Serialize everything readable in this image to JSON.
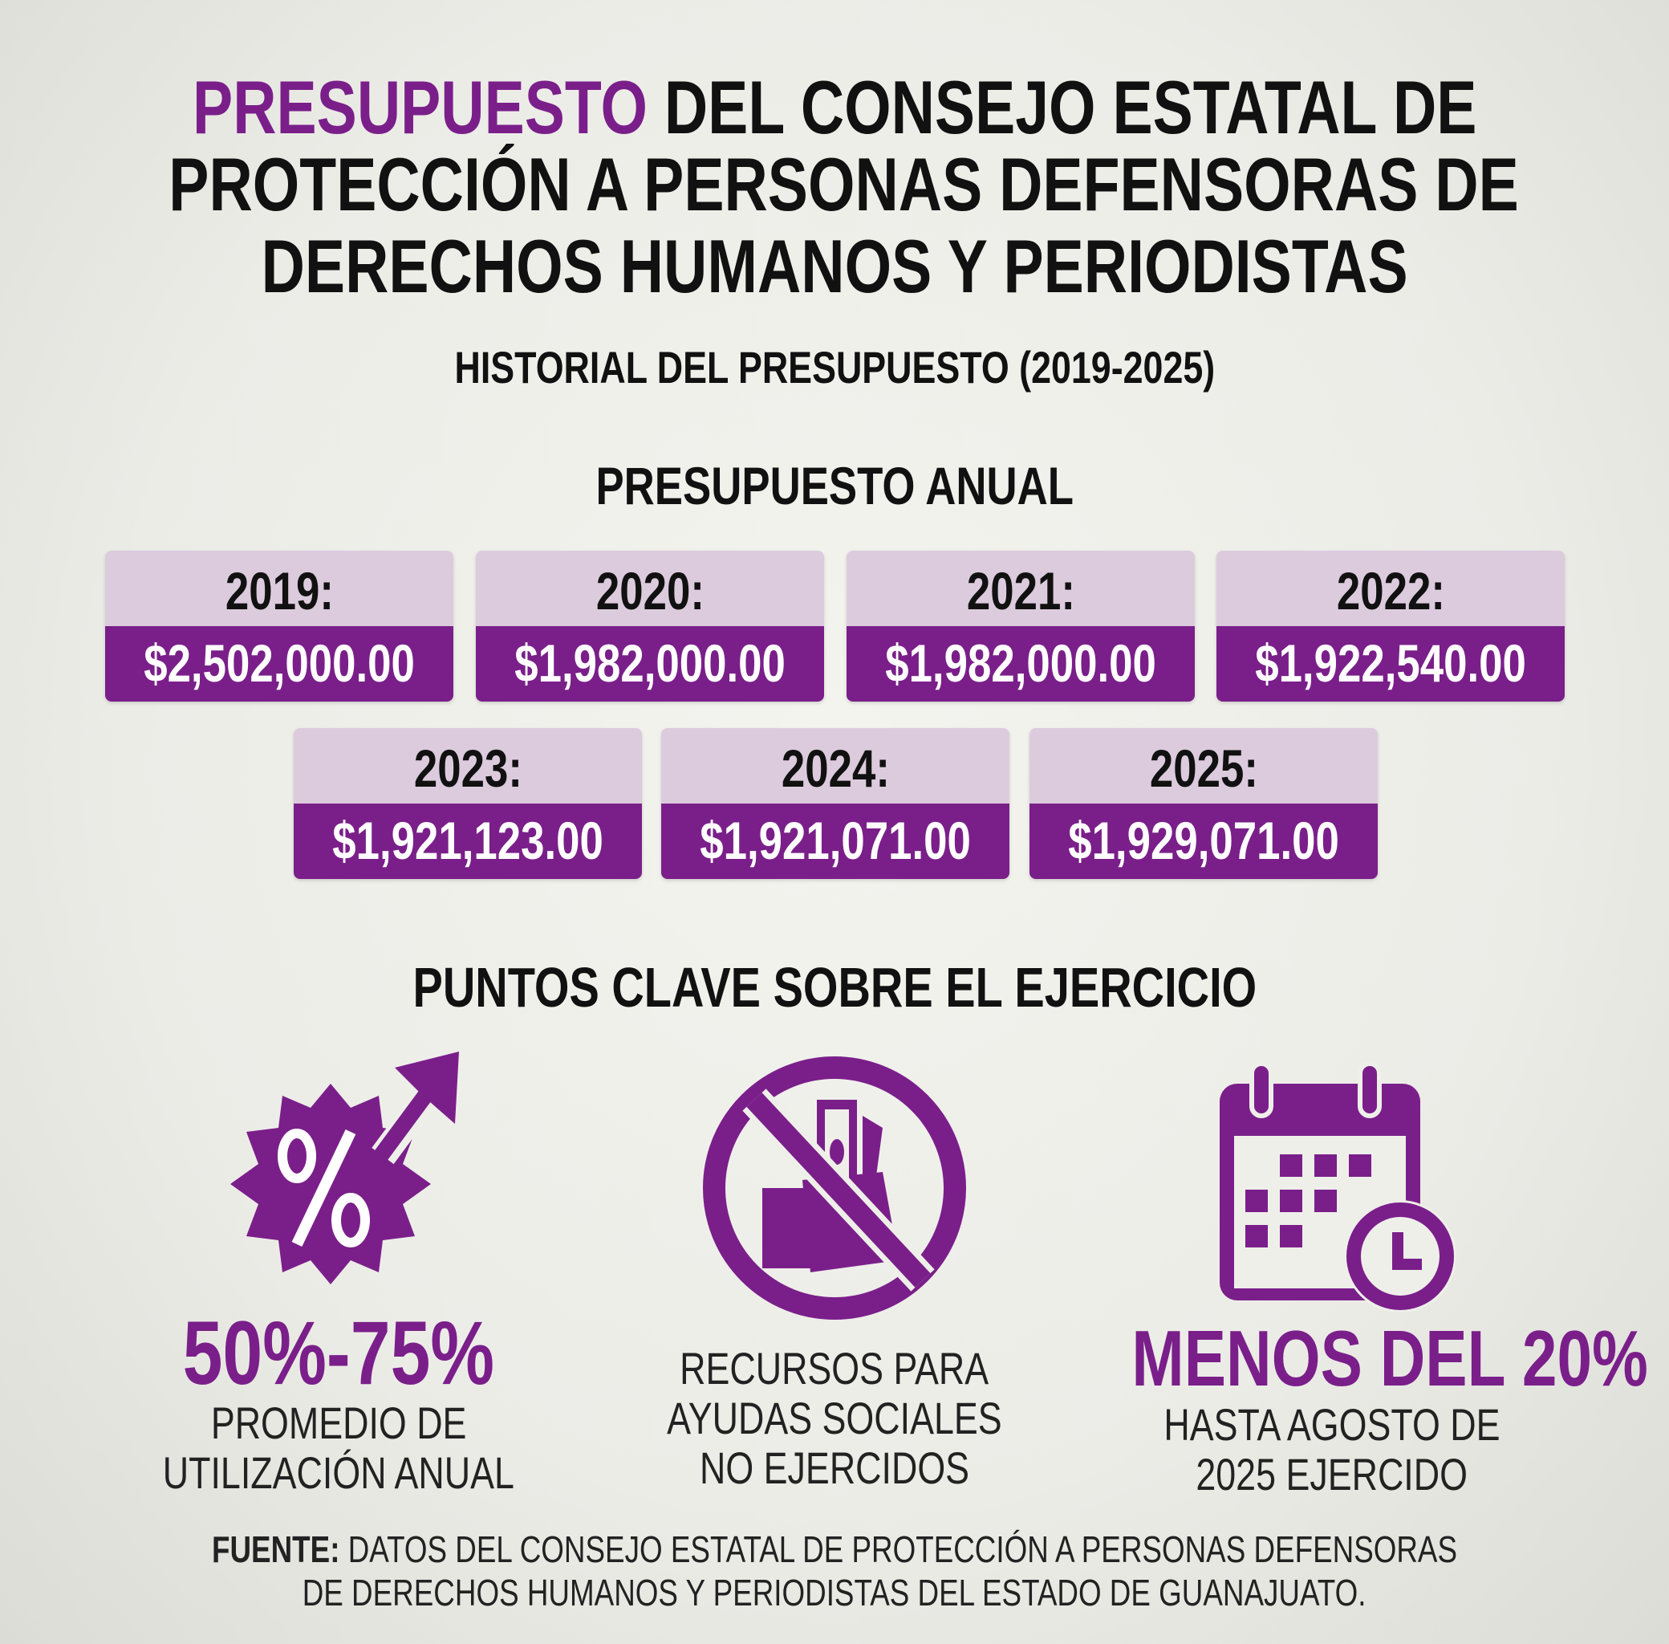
{
  "title": {
    "highlight": "PRESUPUESTO",
    "line1_rest": " DEL CONSEJO ESTATAL DE",
    "line2": "PROTECCIÓN A PERSONAS DEFENSORAS DE",
    "line3": "DERECHOS HUMANOS Y PERIODISTAS"
  },
  "subtitle": "HISTORIAL DEL PRESUPUESTO (2019-2025)",
  "budget_heading": "PRESUPUESTO ANUAL",
  "budgets": [
    {
      "year": "2019:",
      "amount": "$2,502,000.00"
    },
    {
      "year": "2020:",
      "amount": "$1,982,000.00"
    },
    {
      "year": "2021:",
      "amount": "$1,982,000.00"
    },
    {
      "year": "2022:",
      "amount": "$1,922,540.00"
    },
    {
      "year": "2023:",
      "amount": "$1,921,123.00"
    },
    {
      "year": "2024:",
      "amount": "$1,921,071.00"
    },
    {
      "year": "2025:",
      "amount": "$1,929,071.00"
    }
  ],
  "key_points_heading": "PUNTOS CLAVE SOBRE EL EJERCICIO",
  "key_points": [
    {
      "icon": "percent-badge-arrow-icon",
      "stat": "50%-75%",
      "lines": [
        "PROMEDIO DE",
        "UTILIZACIÓN ANUAL"
      ]
    },
    {
      "icon": "no-money-icon",
      "lines": [
        "RECURSOS PARA",
        "AYUDAS SOCIALES",
        "NO EJERCIDOS"
      ]
    },
    {
      "icon": "calendar-clock-icon",
      "stat": "MENOS DEL 20%",
      "lines": [
        "HASTA AGOSTO DE",
        "2025 EJERCIDO"
      ]
    }
  ],
  "source": {
    "label": "FUENTE:",
    "line1": " DATOS DEL CONSEJO ESTATAL DE PROTECCIÓN A PERSONAS DEFENSORAS",
    "line2": "DE DERECHOS HUMANOS Y PERIODISTAS DEL ESTADO DE GUANAJUATO."
  },
  "colors": {
    "accent": "#7a1f8a",
    "accent_light": "#dccbdd",
    "background": "#efefea"
  }
}
